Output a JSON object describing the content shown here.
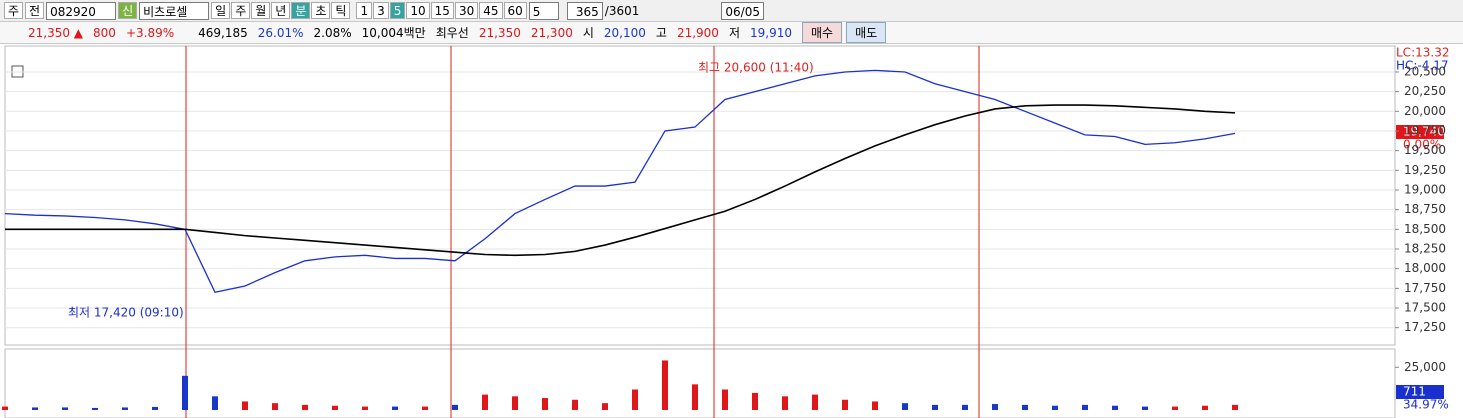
{
  "toolbar": {
    "market": "주",
    "prev": "전",
    "code": "082920",
    "name_badge": "신",
    "name": "비츠로셀",
    "periods": [
      "일",
      "주",
      "월",
      "년",
      "분",
      "초",
      "틱"
    ],
    "intervals": [
      "1",
      "3",
      "5",
      "10",
      "15",
      "30",
      "45",
      "60"
    ],
    "interval_select": "5",
    "count": "365",
    "total": "/3601",
    "date": "06/05"
  },
  "quote": {
    "price": "21,350 ▲",
    "change": "800",
    "change_pct": "+3.89%",
    "volume": "469,185",
    "turnover": "26.01%",
    "ratio": "2.08%",
    "amount": "10,004백만",
    "best_label": "최우선",
    "ask": "21,350",
    "bid": "21,300",
    "open_label": "시",
    "open": "20,100",
    "high_label": "고",
    "high": "21,900",
    "low_label": "저",
    "low": "19,910",
    "buy": "매수",
    "sell": "매도"
  },
  "chart_data": {
    "type": "line",
    "series": [
      {
        "color": "#1a2fd0",
        "values": [
          18700,
          18680,
          18670,
          18650,
          18620,
          18570,
          18500,
          17700,
          17780,
          17950,
          18100,
          18150,
          18170,
          18130,
          18130,
          18100,
          18380,
          18700,
          18880,
          19050,
          19050,
          19100,
          19750,
          19800,
          20150,
          20250,
          20350,
          20450,
          20500,
          20520,
          20500,
          20350,
          20250,
          20150,
          20000,
          19850,
          19700,
          19680,
          19580,
          19600,
          19650,
          19720
        ]
      },
      {
        "color": "#000000",
        "values": [
          18500,
          18500,
          18500,
          18500,
          18500,
          18500,
          18500,
          18460,
          18420,
          18390,
          18360,
          18330,
          18300,
          18270,
          18240,
          18210,
          18180,
          18170,
          18180,
          18220,
          18300,
          18400,
          18510,
          18620,
          18730,
          18880,
          19050,
          19230,
          19400,
          19560,
          19700,
          19830,
          19940,
          20030,
          20070,
          20080,
          20080,
          20070,
          20050,
          20030,
          20000,
          19980
        ]
      }
    ],
    "ylim": [
      17030,
      20830
    ],
    "yticks": [
      {
        "value": 17250,
        "label": "17,250"
      },
      {
        "value": 17500,
        "label": "17,500"
      },
      {
        "value": 17750,
        "label": "17,750"
      },
      {
        "value": 18000,
        "label": "18,000"
      },
      {
        "value": 18250,
        "label": "18,250"
      },
      {
        "value": 18500,
        "label": "18,500"
      },
      {
        "value": 18750,
        "label": "18,750"
      },
      {
        "value": 19000,
        "label": "19,000"
      },
      {
        "value": 19250,
        "label": "19,250"
      },
      {
        "value": 19500,
        "label": "19,500"
      },
      {
        "value": 19750,
        "label": "19,750"
      },
      {
        "value": 20000,
        "label": "20,000"
      },
      {
        "value": 20250,
        "label": "20,250"
      },
      {
        "value": 20500,
        "label": "20,500"
      }
    ],
    "grid": true,
    "annotations": [
      "최고 20,600 (11:40)",
      "최저 17,420 (09:10)"
    ],
    "lc": "LC:13.32",
    "hc": "HC:-4.17",
    "last_label": "19,740",
    "last_pct": "0.00%",
    "volume": {
      "values": [
        2000,
        1500,
        1500,
        1200,
        1500,
        1800,
        20000,
        8000,
        5000,
        4000,
        3000,
        2500,
        2000,
        2000,
        2000,
        3000,
        9000,
        8000,
        7000,
        6000,
        4000,
        12000,
        29000,
        15000,
        12000,
        10000,
        8000,
        9000,
        6000,
        5000,
        4000,
        3000,
        3000,
        3500,
        3000,
        2500,
        3000,
        2500,
        2000,
        2000,
        2500,
        3000
      ],
      "ylim": [
        0,
        35700
      ],
      "yticks": [
        {
          "value": 25000,
          "label": "25,000"
        }
      ],
      "last_label": "711",
      "last_pct": "34.97%"
    }
  }
}
